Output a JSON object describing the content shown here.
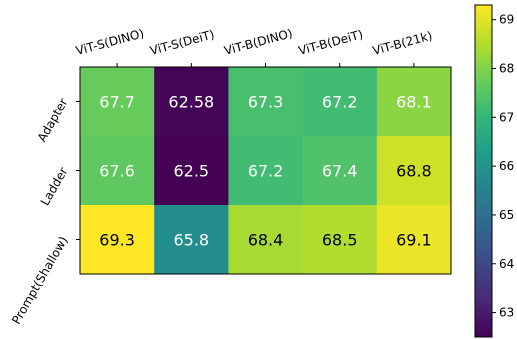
{
  "chart_data": {
    "type": "heatmap",
    "title": "",
    "xlabel": "",
    "ylabel": "",
    "columns": [
      "ViT-S(DINO)",
      "ViT-S(DeiT)",
      "ViT-B(DINO)",
      "ViT-B(DeiT)",
      "ViT-B(21k)"
    ],
    "rows": [
      "Adapter",
      "Ladder",
      "Prompt(Shallow)"
    ],
    "values": [
      [
        67.7,
        62.58,
        67.3,
        67.2,
        68.1
      ],
      [
        67.6,
        62.5,
        67.2,
        67.4,
        68.8
      ],
      [
        69.3,
        65.8,
        68.4,
        68.5,
        69.1
      ]
    ],
    "cell_labels": [
      [
        "67.7",
        "62.58",
        "67.3",
        "67.2",
        "68.1"
      ],
      [
        "67.6",
        "62.5",
        "67.2",
        "67.4",
        "68.8"
      ],
      [
        "69.3",
        "65.8",
        "68.4",
        "68.5",
        "69.1"
      ]
    ],
    "colorscale": "viridis",
    "vmin": 62.5,
    "vmax": 69.3,
    "colorbar_ticks": [
      63,
      64,
      65,
      66,
      67,
      68,
      69
    ],
    "colorbar_tick_labels": [
      "63",
      "64",
      "65",
      "66",
      "67",
      "68",
      "69"
    ]
  }
}
